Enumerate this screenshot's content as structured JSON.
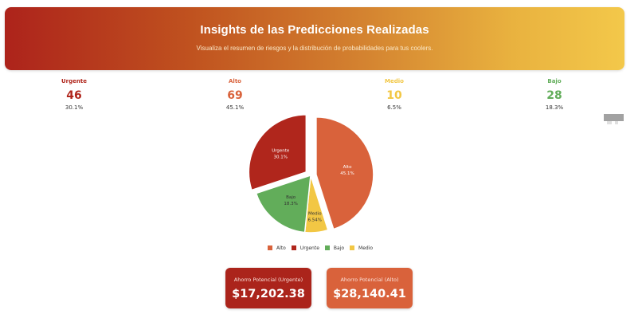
{
  "header": {
    "title": "Insights de las Predicciones Realizadas",
    "subtitle": "Visualiza el resumen de riesgos y la distribución de probabilidades para tus coolers."
  },
  "stats": [
    {
      "label": "Urgente",
      "value": "46",
      "percent": "30.1%",
      "color": "#b0261c"
    },
    {
      "label": "Alto",
      "value": "69",
      "percent": "45.1%",
      "color": "#d9623b"
    },
    {
      "label": "Medio",
      "value": "10",
      "percent": "6.5%",
      "color": "#f2c744"
    },
    {
      "label": "Bajo",
      "value": "28",
      "percent": "18.3%",
      "color": "#62ad5a"
    }
  ],
  "chart_toolbar": {
    "icons": [
      "camera-icon",
      "fullscreen-icon"
    ]
  },
  "chart_data": {
    "type": "pie",
    "title": "",
    "categories": [
      "Alto",
      "Medio",
      "Bajo",
      "Urgente"
    ],
    "values": [
      69,
      10,
      28,
      46
    ],
    "percent_labels": [
      "45.1%",
      "6.54%",
      "18.3%",
      "30.1%"
    ],
    "colors": [
      "#d9623b",
      "#f2c744",
      "#62ad5a",
      "#b0261c"
    ],
    "pulled": [
      "Alto",
      "Urgente"
    ],
    "legend": [
      "Alto",
      "Urgente",
      "Bajo",
      "Medio"
    ],
    "legend_colors": [
      "#d9623b",
      "#b0261c",
      "#62ad5a",
      "#f2c744"
    ],
    "legend_position": "bottom"
  },
  "legend": {
    "items": [
      {
        "label": "Alto",
        "color": "#d9623b"
      },
      {
        "label": "Urgente",
        "color": "#b0261c"
      },
      {
        "label": "Bajo",
        "color": "#62ad5a"
      },
      {
        "label": "Medio",
        "color": "#f2c744"
      }
    ]
  },
  "savings": [
    {
      "label": "Ahorro Potencial (Urgente)",
      "value": "$17,202.38",
      "color": "#ab241b"
    },
    {
      "label": "Ahorro Potencial (Alto)",
      "value": "$28,140.41",
      "color": "#d9623b"
    }
  ]
}
